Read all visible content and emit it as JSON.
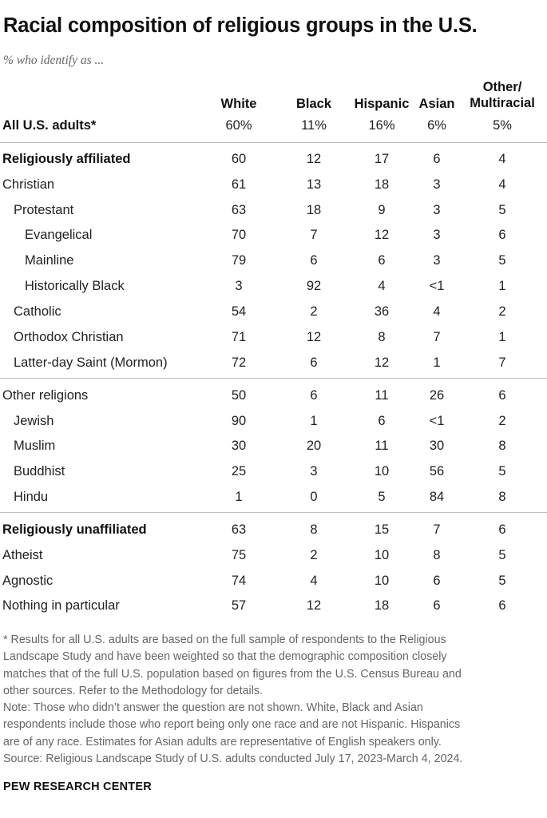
{
  "title": "Racial composition of religious groups in the U.S.",
  "subtitle": "% who identify as ...",
  "chart_data": {
    "type": "table",
    "columns": [
      "White",
      "Black",
      "Hispanic",
      "Asian",
      "Other/ Multiracial"
    ],
    "rows": [
      {
        "label": "All U.S. adults*",
        "bold": true,
        "indent": 0,
        "values": [
          "60%",
          "11%",
          "16%",
          "6%",
          "5%"
        ]
      },
      {
        "label": "Religiously affiliated",
        "bold": true,
        "indent": 0,
        "values": [
          "60",
          "12",
          "17",
          "6",
          "4"
        ]
      },
      {
        "label": "Christian",
        "bold": false,
        "indent": 0,
        "values": [
          "61",
          "13",
          "18",
          "3",
          "4"
        ]
      },
      {
        "label": "Protestant",
        "bold": false,
        "indent": 1,
        "values": [
          "63",
          "18",
          "9",
          "3",
          "5"
        ]
      },
      {
        "label": "Evangelical",
        "bold": false,
        "indent": 2,
        "values": [
          "70",
          "7",
          "12",
          "3",
          "6"
        ]
      },
      {
        "label": "Mainline",
        "bold": false,
        "indent": 2,
        "values": [
          "79",
          "6",
          "6",
          "3",
          "5"
        ]
      },
      {
        "label": "Historically Black",
        "bold": false,
        "indent": 2,
        "values": [
          "3",
          "92",
          "4",
          "<1",
          "1"
        ]
      },
      {
        "label": "Catholic",
        "bold": false,
        "indent": 1,
        "values": [
          "54",
          "2",
          "36",
          "4",
          "2"
        ]
      },
      {
        "label": "Orthodox Christian",
        "bold": false,
        "indent": 1,
        "values": [
          "71",
          "12",
          "8",
          "7",
          "1"
        ]
      },
      {
        "label": "Latter-day Saint (Mormon)",
        "bold": false,
        "indent": 1,
        "values": [
          "72",
          "6",
          "12",
          "1",
          "7"
        ]
      },
      {
        "label": "Other religions",
        "bold": false,
        "indent": 0,
        "values": [
          "50",
          "6",
          "11",
          "26",
          "6"
        ]
      },
      {
        "label": "Jewish",
        "bold": false,
        "indent": 1,
        "values": [
          "90",
          "1",
          "6",
          "<1",
          "2"
        ]
      },
      {
        "label": "Muslim",
        "bold": false,
        "indent": 1,
        "values": [
          "30",
          "20",
          "11",
          "30",
          "8"
        ]
      },
      {
        "label": "Buddhist",
        "bold": false,
        "indent": 1,
        "values": [
          "25",
          "3",
          "10",
          "56",
          "5"
        ]
      },
      {
        "label": "Hindu",
        "bold": false,
        "indent": 1,
        "values": [
          "1",
          "0",
          "5",
          "84",
          "8"
        ]
      },
      {
        "label": "Religiously unaffiliated",
        "bold": true,
        "indent": 0,
        "values": [
          "63",
          "8",
          "15",
          "7",
          "6"
        ]
      },
      {
        "label": "Atheist",
        "bold": false,
        "indent": 0,
        "values": [
          "75",
          "2",
          "10",
          "8",
          "5"
        ]
      },
      {
        "label": "Agnostic",
        "bold": false,
        "indent": 0,
        "values": [
          "74",
          "4",
          "10",
          "6",
          "5"
        ]
      },
      {
        "label": "Nothing in particular",
        "bold": false,
        "indent": 0,
        "values": [
          "57",
          "12",
          "18",
          "6",
          "6"
        ]
      }
    ]
  },
  "footnotes": [
    "* Results for all U.S. adults are based on the full sample of respondents to the Religious",
    "Landscape Study and have been weighted so that the demographic composition closely",
    "matches that of the full U.S. population based on figures from the U.S. Census Bureau and",
    "other sources. Refer to the Methodology for details.",
    "Note: Those who didn’t answer the question are not shown. White, Black and Asian",
    "respondents include those who report being only one race and are not Hispanic. Hispanics",
    "are of any race. Estimates for Asian adults are representative of English speakers only.",
    "Source: Religious Landscape Study of U.S. adults conducted July 17, 2023-March 4, 2024."
  ],
  "brand": "PEW RESEARCH CENTER"
}
